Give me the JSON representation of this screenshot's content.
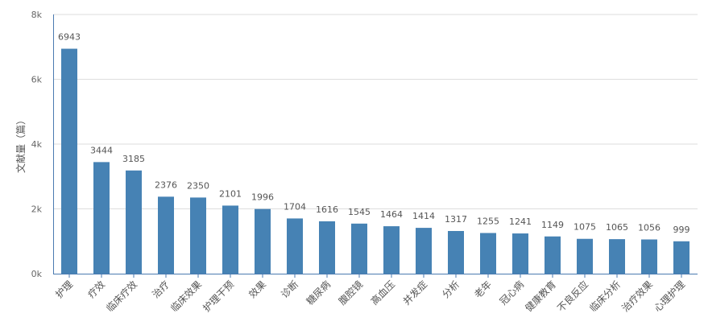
{
  "chart_data": {
    "type": "bar",
    "ylabel": "文献量（篇）",
    "ylim": [
      0,
      8000
    ],
    "yticks": [
      {
        "value": 0,
        "label": "0k"
      },
      {
        "value": 2000,
        "label": "2k"
      },
      {
        "value": 4000,
        "label": "4k"
      },
      {
        "value": 6000,
        "label": "6k"
      },
      {
        "value": 8000,
        "label": "8k"
      }
    ],
    "grid": true,
    "bar_color": "#4682b4",
    "categories": [
      "护理",
      "疗效",
      "临床疗效",
      "治疗",
      "临床效果",
      "护理干预",
      "效果",
      "诊断",
      "糖尿病",
      "腹腔镜",
      "高血压",
      "并发症",
      "分析",
      "老年",
      "冠心病",
      "健康教育",
      "不良反应",
      "临床分析",
      "治疗效果",
      "心理护理"
    ],
    "values": [
      6943,
      3444,
      3185,
      2376,
      2350,
      2101,
      1996,
      1704,
      1616,
      1545,
      1464,
      1414,
      1317,
      1255,
      1241,
      1149,
      1075,
      1065,
      1056,
      999
    ]
  }
}
